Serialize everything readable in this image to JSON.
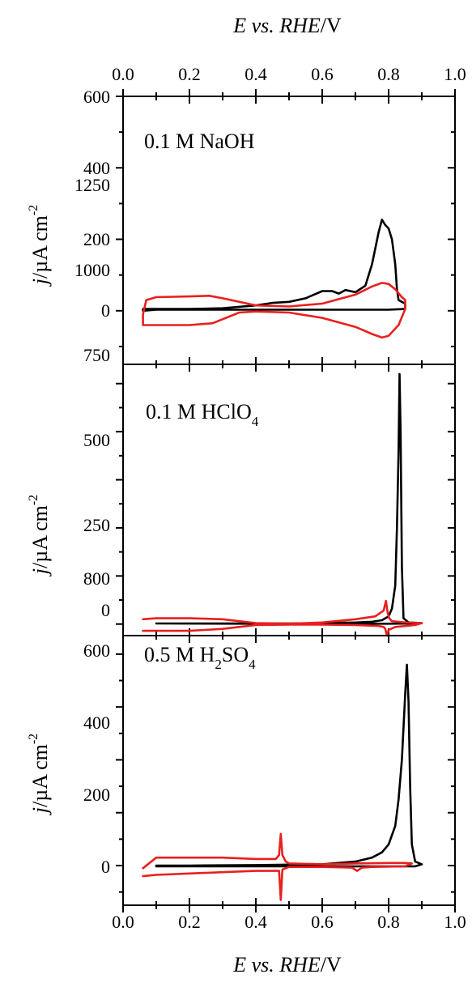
{
  "chart_data": {
    "type": "line",
    "colors": {
      "black": "#000000",
      "red": "#e8201e"
    },
    "x_axis": {
      "label_main": "E",
      "label_mid": " vs. ",
      "label_ital2": "RHE",
      "label_unit": "/V",
      "range": [
        0.0,
        1.0
      ],
      "ticks": [
        0.0,
        0.2,
        0.4,
        0.6,
        0.8,
        1.0
      ],
      "tick_labels": [
        "0.0",
        "0.2",
        "0.4",
        "0.6",
        "0.8",
        "1.0"
      ],
      "position": "top-and-bottom"
    },
    "panels": [
      {
        "label": "0.1 M NaOH",
        "label_parts": [
          "0.1 M NaOH"
        ],
        "ylabel": "j/µA cm",
        "ylabel_parts": {
          "italic": "j",
          "rest": "/µA cm",
          "sup": "-2"
        },
        "ylim": [
          -150,
          600
        ],
        "yticks": [
          0,
          200,
          400,
          600
        ],
        "ytick_labels": [
          "0",
          "200",
          "400",
          "600"
        ],
        "series": [
          {
            "color": "black",
            "x": [
              0.06,
              0.06,
              0.1,
              0.2,
              0.3,
              0.4,
              0.45,
              0.5,
              0.55,
              0.6,
              0.63,
              0.65,
              0.67,
              0.7,
              0.73,
              0.75,
              0.77,
              0.78,
              0.79,
              0.8,
              0.81,
              0.82,
              0.825,
              0.83,
              0.84,
              0.85,
              0.85,
              0.8,
              0.7,
              0.5,
              0.3,
              0.1,
              0.06
            ],
            "y": [
              0,
              5,
              5,
              5,
              7,
              15,
              22,
              25,
              35,
              55,
              55,
              48,
              58,
              52,
              70,
              130,
              220,
              255,
              240,
              230,
              200,
              130,
              60,
              30,
              25,
              20,
              5,
              3,
              3,
              3,
              3,
              3,
              0
            ]
          },
          {
            "color": "red",
            "x": [
              0.06,
              0.07,
              0.1,
              0.2,
              0.26,
              0.3,
              0.4,
              0.5,
              0.6,
              0.7,
              0.75,
              0.78,
              0.8,
              0.82,
              0.84,
              0.85,
              0.85,
              0.83,
              0.8,
              0.78,
              0.75,
              0.7,
              0.6,
              0.5,
              0.4,
              0.35,
              0.27,
              0.2,
              0.1,
              0.06,
              0.06
            ],
            "y": [
              -10,
              30,
              38,
              40,
              42,
              35,
              15,
              12,
              20,
              45,
              68,
              78,
              75,
              60,
              38,
              30,
              5,
              -40,
              -70,
              -75,
              -65,
              -45,
              -20,
              -5,
              -2,
              -5,
              -35,
              -40,
              -40,
              -40,
              -10
            ]
          }
        ]
      },
      {
        "label": "0.1 M HClO",
        "label_parts": [
          "0.1 M HClO",
          "4"
        ],
        "ylabel": "j/µA cm",
        "ylabel_parts": {
          "italic": "j",
          "rest": "/µA cm",
          "sup": "-2"
        },
        "ylim": [
          -60,
          1350
        ],
        "yticks": [
          0,
          250,
          500,
          750,
          1000,
          1250
        ],
        "ytick_labels": [
          "0",
          "250",
          "500",
          "750",
          "1000",
          "1250"
        ],
        "series": [
          {
            "color": "black",
            "x": [
              0.1,
              0.3,
              0.5,
              0.6,
              0.7,
              0.75,
              0.78,
              0.8,
              0.81,
              0.82,
              0.825,
              0.83,
              0.833,
              0.836,
              0.84,
              0.845,
              0.86,
              0.9,
              0.88,
              0.8,
              0.6,
              0.4,
              0.1
            ],
            "y": [
              3,
              3,
              3,
              5,
              8,
              12,
              20,
              40,
              80,
              200,
              500,
              900,
              1300,
              1000,
              300,
              30,
              8,
              5,
              3,
              2,
              2,
              2,
              3
            ]
          },
          {
            "color": "red",
            "x": [
              0.06,
              0.1,
              0.2,
              0.3,
              0.4,
              0.5,
              0.6,
              0.7,
              0.76,
              0.785,
              0.792,
              0.797,
              0.802,
              0.81,
              0.85,
              0.9,
              0.88,
              0.82,
              0.8,
              0.795,
              0.79,
              0.785,
              0.77,
              0.7,
              0.6,
              0.5,
              0.4,
              0.3,
              0.2,
              0.1,
              0.06
            ],
            "y": [
              25,
              30,
              30,
              25,
              5,
              2,
              8,
              25,
              40,
              70,
              120,
              60,
              30,
              15,
              8,
              5,
              -5,
              -15,
              -30,
              -60,
              -25,
              -15,
              -10,
              -5,
              -3,
              -3,
              -5,
              -25,
              -35,
              -35,
              -35
            ]
          }
        ]
      },
      {
        "label": "0.5 M H",
        "label_parts": [
          "0.5 M H",
          "2",
          "SO",
          "4"
        ],
        "ylabel": "j/µA cm",
        "ylabel_parts": {
          "italic": "j",
          "rest": "/µA cm",
          "sup": "-2"
        },
        "ylim": [
          -150,
          870
        ],
        "yticks": [
          0,
          200,
          400,
          600,
          800
        ],
        "ytick_labels": [
          "0",
          "200",
          "400",
          "600",
          "800"
        ],
        "series": [
          {
            "color": "black",
            "x": [
              0.1,
              0.2,
              0.4,
              0.6,
              0.7,
              0.75,
              0.78,
              0.8,
              0.82,
              0.83,
              0.84,
              0.85,
              0.855,
              0.86,
              0.865,
              0.87,
              0.88,
              0.9,
              0.88,
              0.8,
              0.6,
              0.4,
              0.2,
              0.1
            ],
            "y": [
              0,
              0,
              2,
              5,
              15,
              30,
              50,
              80,
              150,
              250,
              400,
              650,
              760,
              620,
              300,
              80,
              15,
              5,
              -3,
              -3,
              -3,
              -3,
              -3,
              -3
            ]
          },
          {
            "color": "red",
            "x": [
              0.06,
              0.1,
              0.2,
              0.3,
              0.4,
              0.46,
              0.47,
              0.475,
              0.48,
              0.49,
              0.5,
              0.6,
              0.7,
              0.8,
              0.85,
              0.87,
              0.85,
              0.75,
              0.72,
              0.705,
              0.69,
              0.6,
              0.5,
              0.48,
              0.475,
              0.47,
              0.46,
              0.4,
              0.3,
              0.2,
              0.1,
              0.06
            ],
            "y": [
              -10,
              30,
              30,
              30,
              25,
              25,
              40,
              120,
              40,
              15,
              8,
              5,
              8,
              10,
              10,
              8,
              -3,
              -5,
              -8,
              -20,
              -8,
              -5,
              -5,
              -15,
              -130,
              -20,
              -20,
              -20,
              -25,
              -30,
              -35,
              -40
            ]
          }
        ]
      }
    ]
  }
}
